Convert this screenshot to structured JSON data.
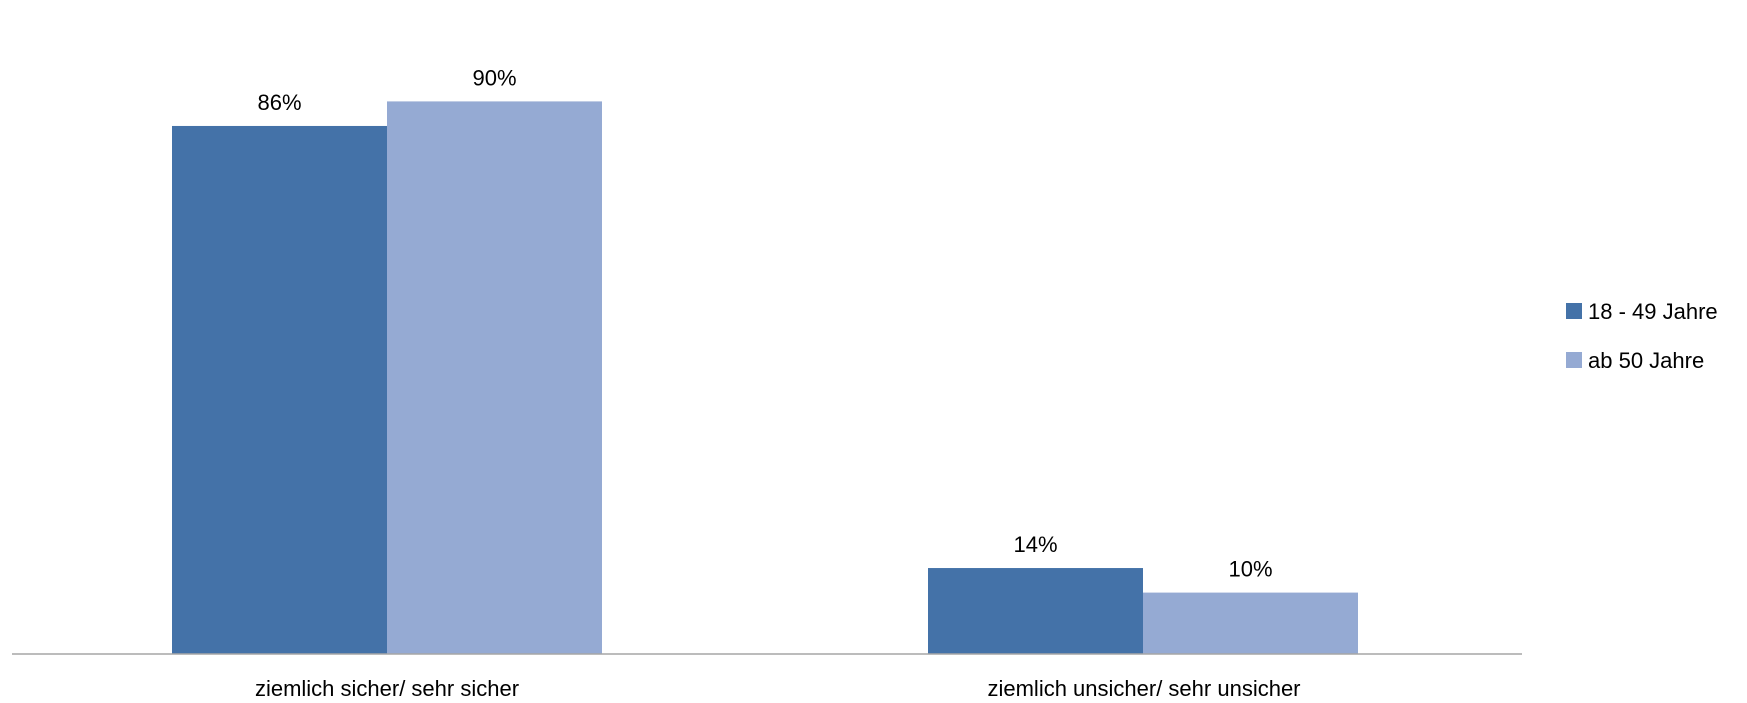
{
  "chart_data": {
    "type": "bar",
    "categories": [
      "ziemlich sicher/ sehr sicher",
      "ziemlich unsicher/ sehr unsicher"
    ],
    "series": [
      {
        "name": "18 - 49 Jahre",
        "values": [
          86,
          14
        ],
        "labels": [
          "86%",
          "14%"
        ],
        "color": "#4472A8"
      },
      {
        "name": "ab 50 Jahre",
        "values": [
          90,
          10
        ],
        "labels": [
          "90%",
          "10%"
        ],
        "color": "#95AAD3"
      }
    ],
    "ylim": [
      0,
      100
    ],
    "unit": "%",
    "grid": false,
    "legend_position": "right",
    "axis_color": "#A6A6A6"
  }
}
